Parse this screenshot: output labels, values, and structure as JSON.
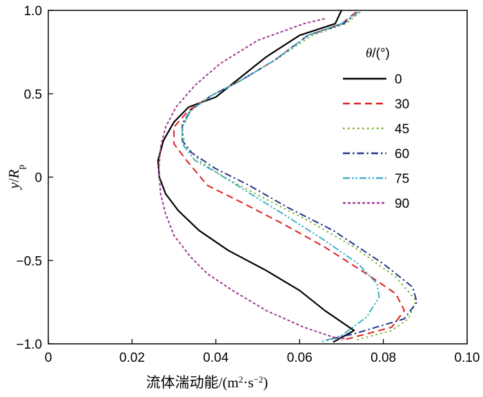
{
  "chart_data": {
    "type": "line",
    "title": "",
    "xlabel": "流体湍动能/(m²·s⁻²)",
    "xlabel_parts": {
      "main": "流体湍动能/(m",
      "sup1": "2",
      "mid": "·s",
      "sup2": "−2",
      "end": ")"
    },
    "ylabel": "y/R_p",
    "ylabel_parts": {
      "y": "y",
      "slash": "/",
      "R": "R",
      "sub": "p"
    },
    "xlim": [
      0,
      0.1
    ],
    "ylim": [
      -1.0,
      1.0
    ],
    "xticks": [
      0,
      0.02,
      0.04,
      0.06,
      0.08,
      0.1
    ],
    "xtick_labels": [
      "0",
      "0.02",
      "0.04",
      "0.06",
      "0.08",
      "0.10"
    ],
    "yticks": [
      -1.0,
      -0.5,
      0,
      0.5,
      1.0
    ],
    "ytick_labels": [
      "−1.0",
      "−0.5",
      "0",
      "0.5",
      "1.0"
    ],
    "legend_title": "θ/(°)",
    "legend_position": "right",
    "grid": false,
    "series": [
      {
        "name": "0",
        "color": "#000000",
        "dash": "solid",
        "points": [
          [
            0.07,
            1.0
          ],
          [
            0.0685,
            0.92
          ],
          [
            0.06,
            0.85
          ],
          [
            0.052,
            0.72
          ],
          [
            0.046,
            0.6
          ],
          [
            0.04,
            0.48
          ],
          [
            0.0335,
            0.42
          ],
          [
            0.03,
            0.33
          ],
          [
            0.0275,
            0.22
          ],
          [
            0.0262,
            0.1
          ],
          [
            0.0265,
            0.0
          ],
          [
            0.028,
            -0.1
          ],
          [
            0.031,
            -0.2
          ],
          [
            0.036,
            -0.32
          ],
          [
            0.043,
            -0.44
          ],
          [
            0.052,
            -0.56
          ],
          [
            0.06,
            -0.68
          ],
          [
            0.066,
            -0.8
          ],
          [
            0.073,
            -0.92
          ],
          [
            0.068,
            -0.99
          ]
        ]
      },
      {
        "name": "30",
        "color": "#e02020",
        "dash": "dashed",
        "points": [
          [
            0.0735,
            0.99
          ],
          [
            0.07,
            0.92
          ],
          [
            0.062,
            0.85
          ],
          [
            0.054,
            0.7
          ],
          [
            0.046,
            0.58
          ],
          [
            0.039,
            0.49
          ],
          [
            0.0335,
            0.4
          ],
          [
            0.03,
            0.3
          ],
          [
            0.03,
            0.2
          ],
          [
            0.033,
            0.1
          ],
          [
            0.038,
            -0.05
          ],
          [
            0.046,
            -0.15
          ],
          [
            0.056,
            -0.28
          ],
          [
            0.066,
            -0.42
          ],
          [
            0.076,
            -0.58
          ],
          [
            0.083,
            -0.7
          ],
          [
            0.085,
            -0.8
          ],
          [
            0.082,
            -0.9
          ],
          [
            0.07,
            -0.98
          ]
        ]
      },
      {
        "name": "45",
        "color": "#7ab030",
        "dash": "dotted",
        "points": [
          [
            0.0745,
            0.99
          ],
          [
            0.071,
            0.92
          ],
          [
            0.063,
            0.85
          ],
          [
            0.054,
            0.7
          ],
          [
            0.046,
            0.58
          ],
          [
            0.039,
            0.49
          ],
          [
            0.034,
            0.4
          ],
          [
            0.032,
            0.3
          ],
          [
            0.0325,
            0.2
          ],
          [
            0.036,
            0.1
          ],
          [
            0.042,
            0.0
          ],
          [
            0.051,
            -0.12
          ],
          [
            0.062,
            -0.26
          ],
          [
            0.073,
            -0.42
          ],
          [
            0.083,
            -0.6
          ],
          [
            0.0878,
            -0.74
          ],
          [
            0.086,
            -0.85
          ],
          [
            0.082,
            -0.92
          ],
          [
            0.073,
            -0.98
          ]
        ]
      },
      {
        "name": "60",
        "color": "#23318c",
        "dash": "dashdot",
        "points": [
          [
            0.074,
            0.99
          ],
          [
            0.0705,
            0.92
          ],
          [
            0.062,
            0.85
          ],
          [
            0.054,
            0.7
          ],
          [
            0.046,
            0.58
          ],
          [
            0.039,
            0.49
          ],
          [
            0.034,
            0.4
          ],
          [
            0.032,
            0.32
          ],
          [
            0.032,
            0.22
          ],
          [
            0.034,
            0.15
          ],
          [
            0.04,
            0.05
          ],
          [
            0.048,
            -0.05
          ],
          [
            0.057,
            -0.18
          ],
          [
            0.068,
            -0.32
          ],
          [
            0.08,
            -0.52
          ],
          [
            0.087,
            -0.66
          ],
          [
            0.088,
            -0.75
          ],
          [
            0.085,
            -0.85
          ],
          [
            0.073,
            -0.94
          ],
          [
            0.066,
            -0.98
          ]
        ]
      },
      {
        "name": "75",
        "color": "#40b0c8",
        "dash": "dashdotdot",
        "points": [
          [
            0.074,
            0.99
          ],
          [
            0.07,
            0.92
          ],
          [
            0.062,
            0.85
          ],
          [
            0.054,
            0.7
          ],
          [
            0.046,
            0.58
          ],
          [
            0.039,
            0.49
          ],
          [
            0.034,
            0.4
          ],
          [
            0.032,
            0.3
          ],
          [
            0.032,
            0.2
          ],
          [
            0.035,
            0.1
          ],
          [
            0.04,
            0.03
          ],
          [
            0.047,
            -0.08
          ],
          [
            0.056,
            -0.22
          ],
          [
            0.066,
            -0.38
          ],
          [
            0.074,
            -0.52
          ],
          [
            0.0785,
            -0.64
          ],
          [
            0.079,
            -0.72
          ],
          [
            0.076,
            -0.84
          ],
          [
            0.07,
            -0.95
          ],
          [
            0.065,
            -0.99
          ]
        ]
      },
      {
        "name": "90",
        "color": "#a03890",
        "dash": "shortdash",
        "points": [
          [
            0.066,
            0.95
          ],
          [
            0.061,
            0.92
          ],
          [
            0.05,
            0.82
          ],
          [
            0.041,
            0.68
          ],
          [
            0.035,
            0.55
          ],
          [
            0.0305,
            0.42
          ],
          [
            0.028,
            0.3
          ],
          [
            0.0268,
            0.18
          ],
          [
            0.0264,
            0.05
          ],
          [
            0.0268,
            -0.1
          ],
          [
            0.028,
            -0.22
          ],
          [
            0.03,
            -0.35
          ],
          [
            0.034,
            -0.48
          ],
          [
            0.038,
            -0.58
          ],
          [
            0.044,
            -0.68
          ],
          [
            0.052,
            -0.8
          ],
          [
            0.061,
            -0.9
          ],
          [
            0.068,
            -0.96
          ],
          [
            0.071,
            -0.97
          ]
        ]
      }
    ]
  }
}
